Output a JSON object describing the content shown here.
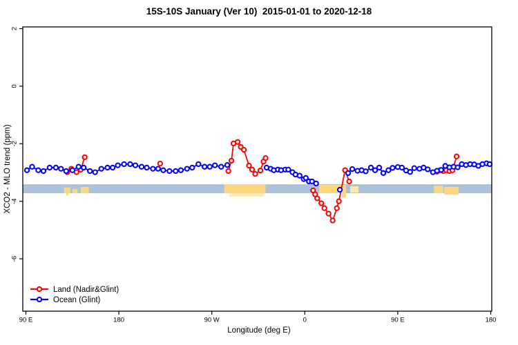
{
  "chart_data": {
    "type": "line",
    "marker": "open-circle",
    "title": "15S-10S January (Ver 10)  2015-01-01 to 2020-12-18",
    "xlabel": "Longitude (deg E)",
    "ylabel": "XCO2 - MLO trend (ppm)",
    "xlim": [
      87,
      541
    ],
    "ylim": [
      -7.82,
      2.06
    ],
    "grid": false,
    "x_ticks": [
      {
        "value": 90,
        "label": "90 E"
      },
      {
        "value": 180,
        "label": "180"
      },
      {
        "value": 270,
        "label": "90 W"
      },
      {
        "value": 360,
        "label": "0"
      },
      {
        "value": 450,
        "label": "90 E"
      },
      {
        "value": 540,
        "label": "180"
      }
    ],
    "y_ticks": [
      {
        "value": 2,
        "label": "2"
      },
      {
        "value": 0,
        "label": "0"
      },
      {
        "value": -2,
        "label": "-2"
      },
      {
        "value": -4,
        "label": "-4"
      },
      {
        "value": -6,
        "label": "-6"
      }
    ],
    "reference_band": {
      "color": "#abc2db",
      "y_top": -3.41,
      "y_bottom": -3.72
    },
    "land_patches_color": "#fbd77f",
    "land_patches_light_color": "#fce9af",
    "land_patches": [
      {
        "x0": 127,
        "x1": 133,
        "y0": -3.52,
        "y1": -3.72
      },
      {
        "x0": 135,
        "x1": 140,
        "y0": -3.57,
        "y1": -3.72
      },
      {
        "x0": 143,
        "x1": 151,
        "y0": -3.5,
        "y1": -3.72
      },
      {
        "x0": 129,
        "x1": 131,
        "y0": -3.72,
        "y1": -3.8
      },
      {
        "x0": 282,
        "x1": 322,
        "y0": -3.41,
        "y1": -3.72
      },
      {
        "x0": 287,
        "x1": 320,
        "y0": -3.72,
        "y1": -3.84,
        "light": true
      },
      {
        "x0": 374,
        "x1": 400,
        "y0": -3.43,
        "y1": -3.72
      },
      {
        "x0": 396,
        "x1": 400,
        "y0": -3.72,
        "y1": -3.87
      },
      {
        "x0": 404,
        "x1": 412,
        "y0": -3.48,
        "y1": -3.7,
        "light": true
      },
      {
        "x0": 485,
        "x1": 494,
        "y0": -3.46,
        "y1": -3.72
      },
      {
        "x0": 495,
        "x1": 509,
        "y0": -3.5,
        "y1": -3.77
      }
    ],
    "series": [
      {
        "id": "land",
        "name": "Land (Nadir&Glint)",
        "color": "#ff0000",
        "segments": [
          [
            [
              130,
              -2.99
            ],
            [
              134,
              -2.87
            ],
            [
              139,
              -2.99
            ],
            [
              143,
              -2.9
            ],
            [
              147,
              -2.47
            ]
          ],
          [
            [
              220,
              -2.69
            ]
          ],
          [
            [
              286,
              -2.95
            ],
            [
              289,
              -2.59
            ],
            [
              291,
              -1.99
            ],
            [
              295,
              -1.94
            ],
            [
              298,
              -2.11
            ],
            [
              301,
              -2.21
            ],
            [
              306,
              -2.76
            ],
            [
              309,
              -2.9
            ],
            [
              312,
              -3.05
            ],
            [
              317,
              -2.93
            ],
            [
              320,
              -2.62
            ],
            [
              322,
              -2.5
            ]
          ],
          [
            [
              368,
              -3.62
            ],
            [
              370,
              -3.76
            ],
            [
              372,
              -3.9
            ],
            [
              376,
              -4.07
            ],
            [
              379,
              -4.24
            ],
            [
              383,
              -4.43
            ],
            [
              387,
              -4.67
            ],
            [
              391,
              -4.24
            ],
            [
              393,
              -4.0
            ],
            [
              399,
              -2.92
            ],
            [
              403,
              -3.31
            ]
          ],
          [
            [
              488,
              -2.97
            ],
            [
              491,
              -2.92
            ],
            [
              494,
              -2.95
            ],
            [
              497,
              -2.92
            ],
            [
              500,
              -2.95
            ],
            [
              503,
              -2.92
            ],
            [
              507,
              -2.44
            ]
          ]
        ]
      },
      {
        "id": "ocean",
        "name": "Ocean (Glint)",
        "color": "#0000ff",
        "segments": [
          [
            [
              91,
              -2.92
            ],
            [
              96,
              -2.8
            ],
            [
              102,
              -2.92
            ],
            [
              107,
              -2.95
            ],
            [
              113,
              -2.83
            ],
            [
              119,
              -2.83
            ],
            [
              124,
              -2.87
            ],
            [
              129,
              -2.95
            ],
            [
              135,
              -2.92
            ],
            [
              141,
              -2.8
            ],
            [
              146,
              -2.83
            ],
            [
              152,
              -2.95
            ],
            [
              157,
              -2.99
            ],
            [
              163,
              -2.87
            ],
            [
              169,
              -2.83
            ],
            [
              174,
              -2.83
            ],
            [
              179,
              -2.75
            ],
            [
              185,
              -2.71
            ],
            [
              191,
              -2.71
            ],
            [
              196,
              -2.75
            ],
            [
              202,
              -2.8
            ],
            [
              207,
              -2.83
            ],
            [
              213,
              -2.87
            ],
            [
              218,
              -2.87
            ],
            [
              223,
              -2.92
            ],
            [
              229,
              -2.95
            ],
            [
              235,
              -2.95
            ],
            [
              240,
              -2.92
            ],
            [
              246,
              -2.87
            ],
            [
              251,
              -2.83
            ],
            [
              257,
              -2.71
            ],
            [
              263,
              -2.8
            ],
            [
              268,
              -2.8
            ],
            [
              273,
              -2.75
            ],
            [
              279,
              -2.8
            ],
            [
              285,
              -2.74
            ]
          ],
          [
            [
              323,
              -2.83
            ],
            [
              327,
              -2.87
            ],
            [
              330,
              -2.92
            ],
            [
              334,
              -2.9
            ],
            [
              337,
              -2.92
            ],
            [
              341,
              -2.9
            ],
            [
              344,
              -2.9
            ],
            [
              348,
              -2.99
            ],
            [
              351,
              -3.07
            ],
            [
              355,
              -3.11
            ],
            [
              359,
              -3.23
            ],
            [
              361,
              -3.19
            ],
            [
              364,
              -3.31
            ],
            [
              367,
              -3.31
            ],
            [
              371,
              -3.38
            ]
          ],
          [
            [
              394,
              -3.6
            ]
          ],
          [
            [
              402,
              -3.02
            ],
            [
              406,
              -2.88
            ],
            [
              411,
              -2.94
            ],
            [
              415,
              -2.92
            ],
            [
              419,
              -2.96
            ],
            [
              424,
              -2.83
            ],
            [
              428,
              -2.92
            ],
            [
              432,
              -2.83
            ],
            [
              436,
              -3.02
            ],
            [
              441,
              -2.92
            ],
            [
              445,
              -2.84
            ],
            [
              450,
              -2.81
            ],
            [
              454,
              -2.83
            ],
            [
              458,
              -2.93
            ],
            [
              462,
              -2.98
            ],
            [
              466,
              -2.85
            ],
            [
              471,
              -2.87
            ],
            [
              475,
              -2.83
            ],
            [
              479,
              -2.89
            ],
            [
              484,
              -2.99
            ],
            [
              488,
              -2.94
            ],
            [
              492,
              -2.91
            ],
            [
              496,
              -2.77
            ],
            [
              500,
              -2.82
            ],
            [
              504,
              -2.8
            ],
            [
              508,
              -2.82
            ],
            [
              512,
              -2.71
            ],
            [
              516,
              -2.74
            ],
            [
              520,
              -2.71
            ],
            [
              524,
              -2.72
            ],
            [
              528,
              -2.77
            ],
            [
              532,
              -2.71
            ],
            [
              536,
              -2.68
            ],
            [
              539,
              -2.71
            ]
          ]
        ]
      }
    ],
    "legend": {
      "position": "bottom-left",
      "entries": [
        {
          "label": "Land (Nadir&Glint)",
          "color": "#ff0000"
        },
        {
          "label": "Ocean (Glint)",
          "color": "#0000ff"
        }
      ]
    }
  }
}
